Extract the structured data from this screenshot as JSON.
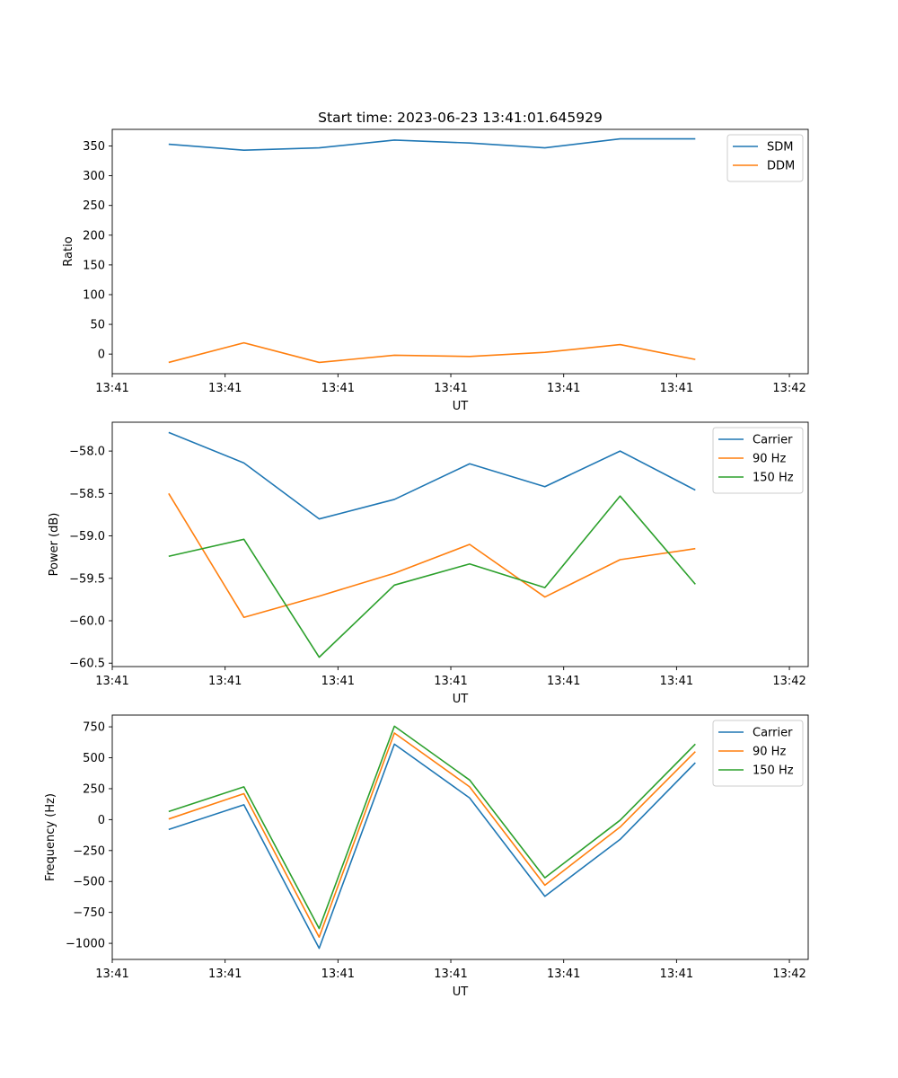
{
  "figure": {
    "title": "Start time: 2023-06-23 13:41:01.645929"
  },
  "chart_data": [
    {
      "type": "line",
      "title": "Start time: 2023-06-23 13:41:01.645929",
      "xlabel": "UT",
      "ylabel": "Ratio",
      "x_tick_labels": [
        "13:41",
        "13:41",
        "13:41",
        "13:41",
        "13:41",
        "13:41",
        "13:42"
      ],
      "x": [
        0,
        1,
        2,
        3,
        4,
        5,
        6,
        7
      ],
      "xlim": [
        -0.75,
        8.5
      ],
      "ylim": [
        -33,
        378
      ],
      "y_ticks": [
        0,
        50,
        100,
        150,
        200,
        250,
        300,
        350
      ],
      "legend_position": "upper right",
      "series": [
        {
          "name": "SDM",
          "color": "#1f77b4",
          "values": [
            353,
            343,
            347,
            360,
            355,
            347,
            362,
            362
          ]
        },
        {
          "name": "DDM",
          "color": "#ff7f0e",
          "values": [
            -14,
            19,
            -14,
            -2,
            -4,
            3,
            16,
            -9
          ]
        }
      ]
    },
    {
      "type": "line",
      "xlabel": "UT",
      "ylabel": "Power (dB)",
      "x_tick_labels": [
        "13:41",
        "13:41",
        "13:41",
        "13:41",
        "13:41",
        "13:41",
        "13:42"
      ],
      "x": [
        0,
        1,
        2,
        3,
        4,
        5,
        6,
        7
      ],
      "xlim": [
        -0.75,
        8.5
      ],
      "ylim": [
        -60.54,
        -57.66
      ],
      "y_ticks": [
        -60.5,
        -60.0,
        -59.5,
        -59.0,
        -58.5,
        -58.0
      ],
      "y_tick_labels": [
        "−60.5",
        "−60.0",
        "−59.5",
        "−59.0",
        "−58.5",
        "−58.0"
      ],
      "legend_position": "upper right",
      "series": [
        {
          "name": "Carrier",
          "color": "#1f77b4",
          "values": [
            -57.78,
            -58.14,
            -58.8,
            -58.57,
            -58.15,
            -58.42,
            -58.0,
            -58.46
          ]
        },
        {
          "name": "90 Hz",
          "color": "#ff7f0e",
          "values": [
            -58.5,
            -59.96,
            -59.71,
            -59.44,
            -59.1,
            -59.72,
            -59.28,
            -59.15
          ]
        },
        {
          "name": "150 Hz",
          "color": "#2ca02c",
          "values": [
            -59.24,
            -59.04,
            -60.43,
            -59.58,
            -59.33,
            -59.61,
            -58.53,
            -59.57
          ]
        }
      ]
    },
    {
      "type": "line",
      "xlabel": "UT",
      "ylabel": "Frequency (Hz)",
      "x_tick_labels": [
        "13:41",
        "13:41",
        "13:41",
        "13:41",
        "13:41",
        "13:41",
        "13:42"
      ],
      "x": [
        0,
        1,
        2,
        3,
        4,
        5,
        6,
        7
      ],
      "xlim": [
        -0.75,
        8.5
      ],
      "ylim": [
        -1130,
        845
      ],
      "y_ticks": [
        -1000,
        -750,
        -500,
        -250,
        0,
        250,
        500,
        750
      ],
      "y_tick_labels": [
        "−1000",
        "−750",
        "−500",
        "−250",
        "0",
        "250",
        "500",
        "750"
      ],
      "legend_position": "upper right",
      "series": [
        {
          "name": "Carrier",
          "color": "#1f77b4",
          "values": [
            -80,
            120,
            -1040,
            610,
            175,
            -620,
            -160,
            460
          ]
        },
        {
          "name": "90 Hz",
          "color": "#ff7f0e",
          "values": [
            5,
            210,
            -950,
            700,
            265,
            -530,
            -60,
            550
          ]
        },
        {
          "name": "150 Hz",
          "color": "#2ca02c",
          "values": [
            65,
            265,
            -880,
            755,
            320,
            -470,
            -5,
            610
          ]
        }
      ]
    }
  ]
}
